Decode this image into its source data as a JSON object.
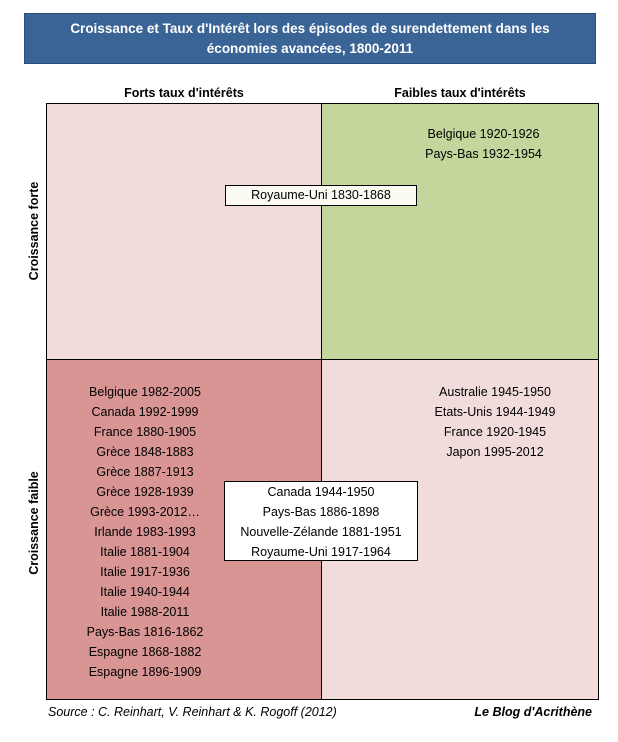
{
  "title": {
    "line1": "Croissance et Taux d'Intérêt lors des épisodes de surendettement dans les",
    "line2": "économies avancées, 1800-2011"
  },
  "columns": {
    "left": "Forts taux d'intérêts",
    "right": "Faibles taux d'intérêts"
  },
  "rows": {
    "top": "Croissance forte",
    "bottom": "Croissance faible"
  },
  "colors": {
    "title_bg": "#3a6496",
    "high_growth_high_rates": "#f2dcdb",
    "high_growth_low_rates": "#c3d69b",
    "low_growth_high_rates": "#d99594",
    "low_growth_low_rates": "#f2dcdb"
  },
  "quadrants": {
    "top_right": [
      "Belgique 1920-1926",
      "Pays-Bas 1932-1954"
    ],
    "bottom_left": [
      "Belgique 1982-2005",
      "Canada 1992-1999",
      "France 1880-1905",
      "Grèce 1848-1883",
      "Grèce 1887-1913",
      "Grèce 1928-1939",
      "Grèce 1993-2012…",
      "Irlande 1983-1993",
      "Italie 1881-1904",
      "Italie 1917-1936",
      "Italie 1940-1944",
      "Italie 1988-2011",
      "Pays-Bas 1816-1862",
      "Espagne 1868-1882",
      "Espagne 1896-1909"
    ],
    "bottom_right": [
      "Australie 1945-1950",
      "Etats-Unis 1944-1949",
      "France 1920-1945",
      "Japon 1995-2012"
    ]
  },
  "boxes": {
    "top_straddle": [
      "Royaume-Uni 1830-1868"
    ],
    "bottom_straddle": [
      "Canada 1944-1950",
      "Pays-Bas 1886-1898",
      "Nouvelle-Zélande 1881-1951",
      "Royaume-Uni 1917-1964"
    ]
  },
  "footer": {
    "source": "Source : C. Reinhart, V. Reinhart & K. Rogoff (2012)",
    "blog": "Le Blog d'Acrithène"
  }
}
